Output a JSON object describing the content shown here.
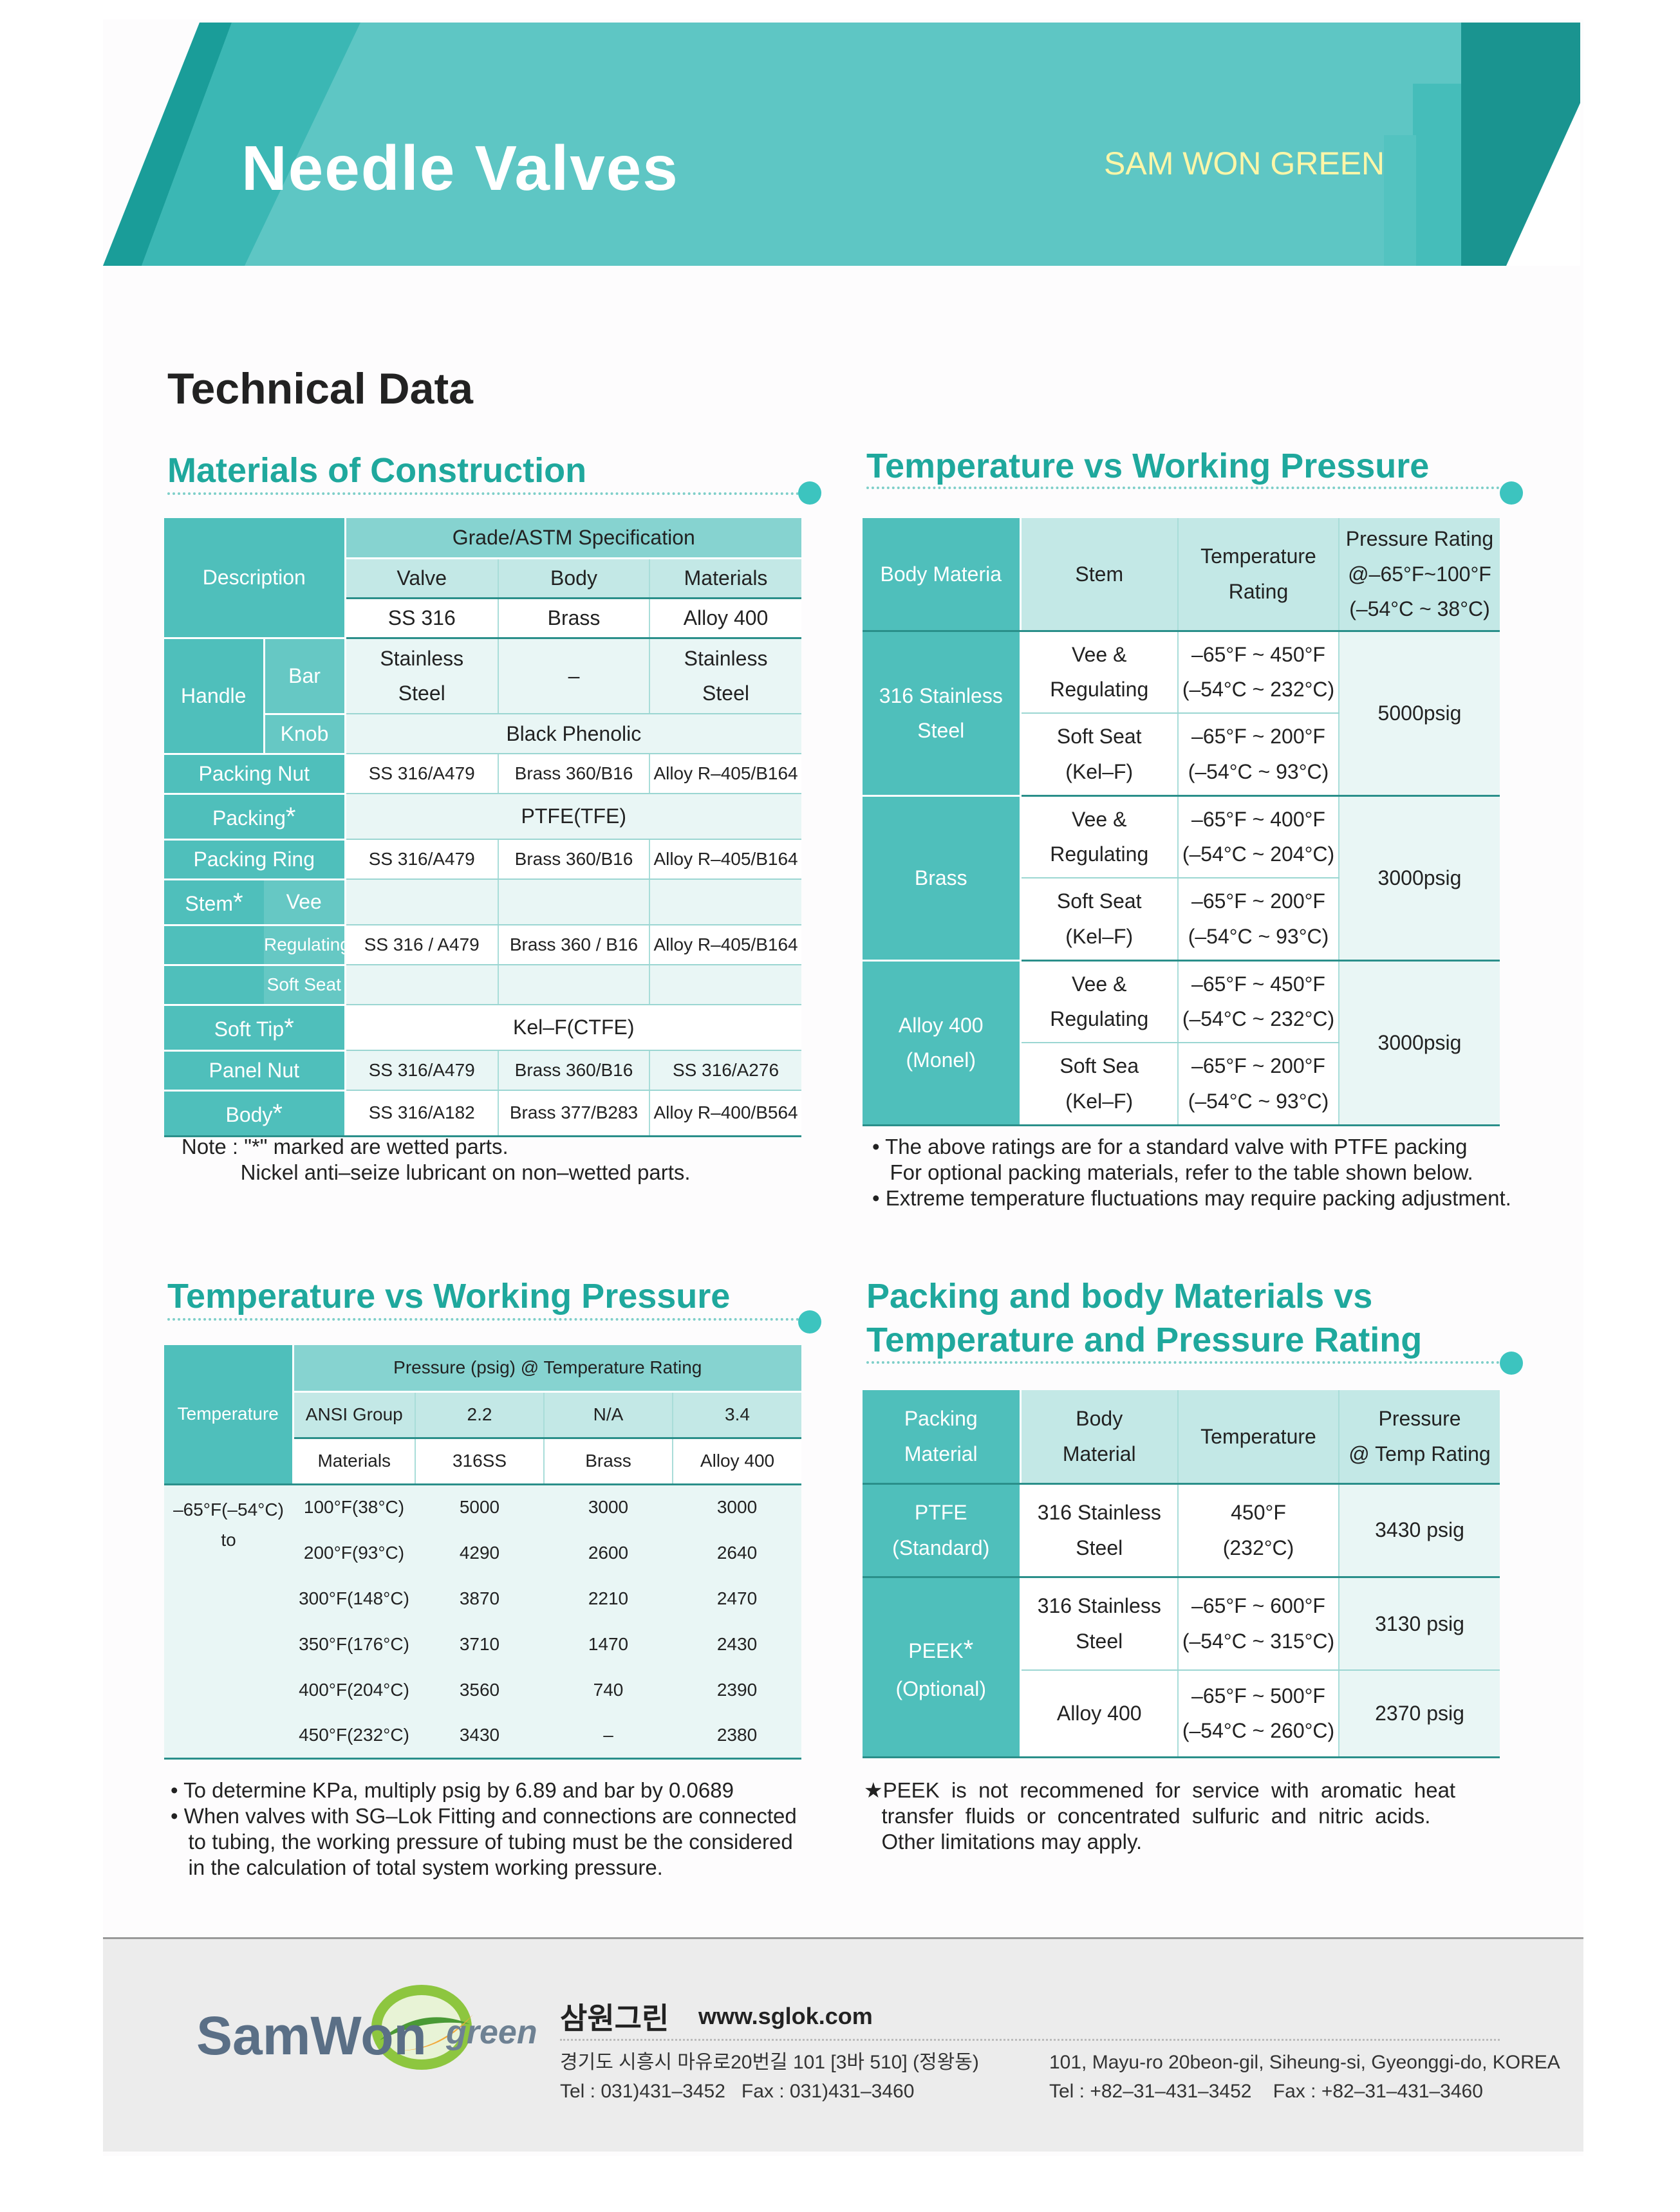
{
  "header": {
    "title": "Needle Valves",
    "brand": "SAM WON GREEN"
  },
  "heading": "Technical Data",
  "sec1": {
    "title": "Materials of Construction",
    "grade_header": "Grade/ASTM Specification",
    "description": "Description",
    "cols": [
      "Valve",
      "Body",
      "Materials"
    ],
    "subcols": [
      "SS 316",
      "Brass",
      "Alloy 400"
    ],
    "handle": "Handle",
    "bar": "Bar",
    "knob": "Knob",
    "stainless_steel": [
      "Stainless",
      "Steel"
    ],
    "dash": "–",
    "black_phenolic": "Black Phenolic",
    "packing_nut": [
      "Packing Nut",
      "SS 316/A479",
      "Brass 360/B16",
      "Alloy R–405/B164"
    ],
    "packing": [
      "Packing",
      "PTFE(TFE)"
    ],
    "packing_ring": [
      "Packing Ring",
      "SS 316/A479",
      "Brass 360/B16",
      "Alloy R–405/B164"
    ],
    "stem": "Stem",
    "vee": "Vee",
    "regulating": [
      "Regulating",
      "SS 316 / A479",
      "Brass 360 / B16",
      "Alloy R–405/B164"
    ],
    "soft_seat": "Soft Seat",
    "soft_tip": [
      "Soft Tip",
      "Kel–F(CTFE)"
    ],
    "panel_nut": [
      "Panel Nut",
      "SS 316/A479",
      "Brass 360/B16",
      "SS 316/A276"
    ],
    "body": [
      "Body",
      "SS 316/A182",
      "Brass 377/B283",
      "Alloy R–400/B564"
    ],
    "star": "*",
    "note": [
      "Note : \"*\" marked are wetted parts.",
      "          Nickel anti–seize lubricant on non–wetted parts."
    ]
  },
  "sec2": {
    "title": "Temperature vs Working Pressure",
    "head": [
      "Body Materia",
      "Stem",
      "Temperature",
      "Rating",
      "Pressure Rating",
      "@–65°F~100°F",
      "(–54°C ~ 38°C)"
    ],
    "groups": [
      {
        "material": [
          "316 Stainless",
          "Steel"
        ],
        "pressure": "5000psig",
        "rows": [
          {
            "stem": [
              "Vee &",
              "Regulating"
            ],
            "temp": [
              "–65°F ~ 450°F",
              "(–54°C ~ 232°C)"
            ]
          },
          {
            "stem": [
              "Soft Seat",
              "(Kel–F)"
            ],
            "temp": [
              "–65°F ~ 200°F",
              "(–54°C ~ 93°C)"
            ]
          }
        ]
      },
      {
        "material": [
          "Brass"
        ],
        "pressure": "3000psig",
        "rows": [
          {
            "stem": [
              "Vee &",
              "Regulating"
            ],
            "temp": [
              "–65°F ~ 400°F",
              "(–54°C ~ 204°C)"
            ]
          },
          {
            "stem": [
              "Soft Seat",
              "(Kel–F)"
            ],
            "temp": [
              "–65°F ~ 200°F",
              "(–54°C ~ 93°C)"
            ]
          }
        ]
      },
      {
        "material": [
          "Alloy 400",
          "(Monel)"
        ],
        "pressure": "3000psig",
        "rows": [
          {
            "stem": [
              "Vee &",
              "Regulating"
            ],
            "temp": [
              "–65°F ~ 450°F",
              "(–54°C ~ 232°C)"
            ]
          },
          {
            "stem": [
              "Soft Sea",
              "(Kel–F)"
            ],
            "temp": [
              "–65°F ~ 200°F",
              "(–54°C ~ 93°C)"
            ]
          }
        ]
      }
    ],
    "notes": [
      "• The above ratings are for a standard valve with PTFE packing",
      "   For optional packing materials, refer to the table shown below.",
      "• Extreme temperature fluctuations may require packing adjustment."
    ]
  },
  "sec3": {
    "title": "Temperature vs Working Pressure",
    "pressure_header": "Pressure (psig) @ Temperature Rating",
    "temperature": "Temperature",
    "ansi": [
      "ANSI Group",
      "2.2",
      "N/A",
      "3.4"
    ],
    "materials": [
      "Materials",
      "316SS",
      "Brass",
      "Alloy 400"
    ],
    "from": "–65°F(–54°C) to",
    "rows": [
      [
        "100°F(38°C)",
        "5000",
        "3000",
        "3000"
      ],
      [
        "200°F(93°C)",
        "4290",
        "2600",
        "2640"
      ],
      [
        "300°F(148°C)",
        "3870",
        "2210",
        "2470"
      ],
      [
        "350°F(176°C)",
        "3710",
        "1470",
        "2430"
      ],
      [
        "400°F(204°C)",
        "3560",
        "740",
        "2390"
      ],
      [
        "450°F(232°C)",
        "3430",
        "–",
        "2380"
      ]
    ],
    "notes": [
      "• To determine KPa, multiply psig by 6.89 and bar by 0.0689",
      "• When valves with SG–Lok Fitting and connections are connected",
      "   to tubing, the working pressure of tubing must be the considered",
      "   in the calculation of total system working pressure."
    ]
  },
  "sec4": {
    "title1": "Packing and body Materials vs",
    "title2": "Temperature and Pressure Rating",
    "head": [
      "Packing",
      "Material",
      "Body",
      "Material",
      "Temperature",
      "Pressure",
      "@ Temp Rating"
    ],
    "ptfe": {
      "packing": [
        "PTFE",
        "(Standard)"
      ],
      "body": [
        "316 Stainless",
        "Steel"
      ],
      "temp": [
        "450°F",
        "(232°C)"
      ],
      "pressure": "3430 psig"
    },
    "peek": {
      "packing": [
        "PEEK",
        "(Optional)"
      ],
      "rows": [
        {
          "body": [
            "316 Stainless",
            "Steel"
          ],
          "temp": [
            "–65°F ~ 600°F",
            "(–54°C ~ 315°C)"
          ],
          "pressure": "3130 psig"
        },
        {
          "body": [
            "Alloy 400"
          ],
          "temp": [
            "–65°F ~ 500°F",
            "(–54°C ~ 260°C)"
          ],
          "pressure": "2370 psig"
        }
      ]
    },
    "notes": [
      "★PEEK  is  not  recommened  for  service  with  aromatic  heat",
      "   transfer  fluids  or  concentrated  sulfuric  and  nitric  acids.",
      "   Other limitations may apply."
    ]
  },
  "footer": {
    "logo_main": "SamWon",
    "logo_sub": "green",
    "name_kr": "삼원그린",
    "website": "www.sglok.com",
    "addr_kr": "경기도 시흥시 마유로20번길 101 [3바 510] (정왕동)",
    "tel_kr": "Tel : 031)431–3452   Fax : 031)431–3460",
    "addr_en": "101, Mayu-ro 20beon-gil, Siheung-si, Gyeonggi-do, KOREA",
    "tel_en": "Tel : +82–31–431–3452    Fax : +82–31–431–3460"
  },
  "colors": {
    "teal": "#1fa89d",
    "header_cell": "#66c8c4",
    "banner": "#5ec6c4"
  }
}
